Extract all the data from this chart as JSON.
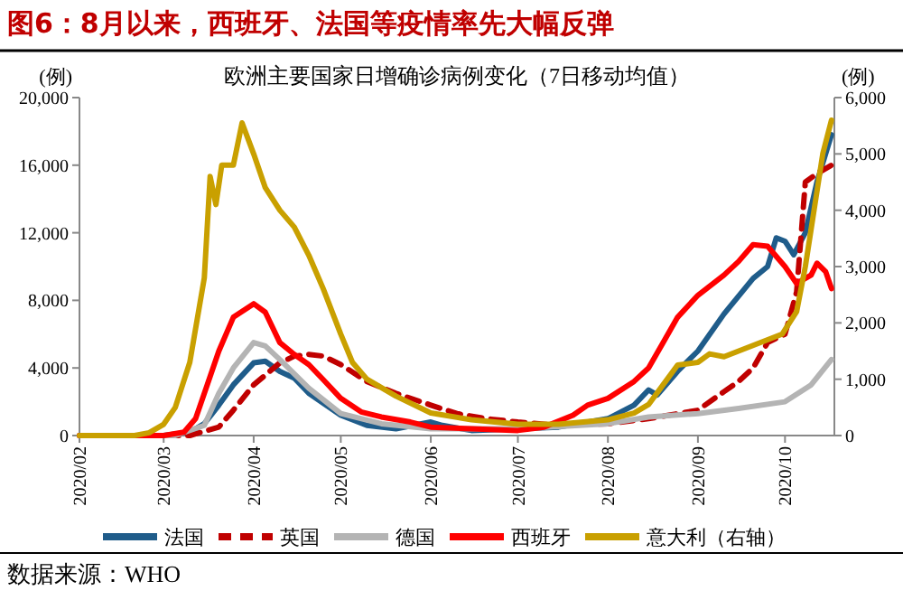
{
  "chart_data": {
    "type": "line",
    "title": "图6：8月以来，西班牙、法国等疫情率先大幅反弹",
    "subtitle": "欧洲主要国家日增确诊病例变化（7日移动均值）",
    "ylabel": "(例)",
    "y2label": "(例)",
    "annotations": [
      "数据来源：WHO"
    ],
    "xlim": [
      "2020-02-01",
      "2020-10-18"
    ],
    "xticks": [
      {
        "value": "2020-02-01",
        "label": "2020/02"
      },
      {
        "value": "2020-03-01",
        "label": "2020/03"
      },
      {
        "value": "2020-04-01",
        "label": "2020/04"
      },
      {
        "value": "2020-05-01",
        "label": "2020/05"
      },
      {
        "value": "2020-06-01",
        "label": "2020/06"
      },
      {
        "value": "2020-07-01",
        "label": "2020/07"
      },
      {
        "value": "2020-08-01",
        "label": "2020/08"
      },
      {
        "value": "2020-09-01",
        "label": "2020/09"
      },
      {
        "value": "2020-10-01",
        "label": "2020/10"
      }
    ],
    "ylim": [
      0,
      20000
    ],
    "yticks": [
      {
        "value": 0,
        "label": "0"
      },
      {
        "value": 4000,
        "label": "4,000"
      },
      {
        "value": 8000,
        "label": "8,000"
      },
      {
        "value": 12000,
        "label": "12,000"
      },
      {
        "value": 16000,
        "label": "16,000"
      },
      {
        "value": 20000,
        "label": "20,000"
      }
    ],
    "y2lim": [
      0,
      6000
    ],
    "y2ticks": [
      {
        "value": 0,
        "label": "0"
      },
      {
        "value": 1000,
        "label": "1,000"
      },
      {
        "value": 2000,
        "label": "2,000"
      },
      {
        "value": 3000,
        "label": "3,000"
      },
      {
        "value": 4000,
        "label": "4,000"
      },
      {
        "value": 5000,
        "label": "5,000"
      },
      {
        "value": 6000,
        "label": "6,000"
      }
    ],
    "grid": false,
    "legend": "bottom",
    "marker": "none",
    "series": [
      {
        "name": "法国",
        "color": "#1f5c8a",
        "line_style": "solid",
        "x": [
          "2020-02-01",
          "2020-03-01",
          "2020-03-10",
          "2020-03-15",
          "2020-03-20",
          "2020-03-25",
          "2020-04-01",
          "2020-04-05",
          "2020-04-10",
          "2020-04-15",
          "2020-04-20",
          "2020-05-01",
          "2020-05-10",
          "2020-05-20",
          "2020-06-01",
          "2020-06-05",
          "2020-06-15",
          "2020-07-01",
          "2020-07-15",
          "2020-08-01",
          "2020-08-10",
          "2020-08-15",
          "2020-08-18",
          "2020-08-25",
          "2020-09-01",
          "2020-09-10",
          "2020-09-20",
          "2020-09-25",
          "2020-09-28",
          "2020-10-01",
          "2020-10-04",
          "2020-10-08",
          "2020-10-12",
          "2020-10-17"
        ],
        "values": [
          0,
          0,
          200,
          700,
          1800,
          3000,
          4300,
          4400,
          3800,
          3400,
          2500,
          1200,
          600,
          400,
          800,
          600,
          300,
          400,
          500,
          1000,
          1800,
          2700,
          2400,
          3800,
          5000,
          7200,
          9300,
          10000,
          11700,
          11500,
          10700,
          12000,
          15000,
          17800
        ]
      },
      {
        "name": "英国",
        "color": "#c00000",
        "line_style": "dashed",
        "x": [
          "2020-02-01",
          "2020-03-10",
          "2020-03-20",
          "2020-03-25",
          "2020-04-01",
          "2020-04-10",
          "2020-04-15",
          "2020-04-20",
          "2020-04-25",
          "2020-05-01",
          "2020-05-10",
          "2020-05-20",
          "2020-06-01",
          "2020-06-10",
          "2020-06-20",
          "2020-07-01",
          "2020-07-15",
          "2020-08-01",
          "2020-08-15",
          "2020-09-01",
          "2020-09-10",
          "2020-09-15",
          "2020-09-20",
          "2020-09-25",
          "2020-10-01",
          "2020-10-05",
          "2020-10-08",
          "2020-10-12",
          "2020-10-17"
        ],
        "values": [
          0,
          0,
          500,
          1500,
          3000,
          4300,
          4700,
          4800,
          4700,
          4200,
          3200,
          2500,
          1800,
          1300,
          1000,
          800,
          600,
          700,
          1000,
          1500,
          2600,
          3200,
          4000,
          5500,
          6000,
          8500,
          15000,
          15500,
          16000
        ]
      },
      {
        "name": "德国",
        "color": "#b4b4b4",
        "line_style": "solid",
        "x": [
          "2020-02-01",
          "2020-03-05",
          "2020-03-15",
          "2020-03-20",
          "2020-03-25",
          "2020-04-01",
          "2020-04-05",
          "2020-04-10",
          "2020-04-20",
          "2020-05-01",
          "2020-05-15",
          "2020-06-01",
          "2020-07-01",
          "2020-08-01",
          "2020-08-15",
          "2020-09-01",
          "2020-09-15",
          "2020-10-01",
          "2020-10-10",
          "2020-10-17"
        ],
        "values": [
          0,
          0,
          600,
          2500,
          4000,
          5500,
          5300,
          4500,
          2800,
          1300,
          700,
          400,
          400,
          700,
          1100,
          1300,
          1600,
          2000,
          3000,
          4500
        ]
      },
      {
        "name": "西班牙",
        "color": "#ff0000",
        "line_style": "solid",
        "x": [
          "2020-02-01",
          "2020-03-01",
          "2020-03-08",
          "2020-03-12",
          "2020-03-16",
          "2020-03-20",
          "2020-03-25",
          "2020-04-01",
          "2020-04-05",
          "2020-04-10",
          "2020-04-15",
          "2020-04-20",
          "2020-04-25",
          "2020-05-01",
          "2020-05-08",
          "2020-05-15",
          "2020-05-25",
          "2020-06-01",
          "2020-06-15",
          "2020-07-01",
          "2020-07-10",
          "2020-07-20",
          "2020-07-25",
          "2020-08-01",
          "2020-08-10",
          "2020-08-15",
          "2020-08-20",
          "2020-08-25",
          "2020-09-01",
          "2020-09-10",
          "2020-09-15",
          "2020-09-20",
          "2020-09-25",
          "2020-10-01",
          "2020-10-05",
          "2020-10-10",
          "2020-10-12",
          "2020-10-15",
          "2020-10-17"
        ],
        "values": [
          0,
          0,
          200,
          1000,
          3000,
          5000,
          7000,
          7800,
          7300,
          5500,
          4800,
          4200,
          3300,
          2200,
          1400,
          1100,
          800,
          500,
          400,
          300,
          500,
          1200,
          1800,
          2200,
          3200,
          4000,
          5500,
          7000,
          8300,
          9500,
          10300,
          11300,
          11200,
          10000,
          9000,
          9500,
          10200,
          9700,
          8700
        ]
      },
      {
        "name": "意大利（右轴）",
        "color": "#c9a000",
        "line_style": "solid",
        "axis": "y2",
        "x": [
          "2020-02-01",
          "2020-02-20",
          "2020-02-25",
          "2020-03-01",
          "2020-03-05",
          "2020-03-10",
          "2020-03-15",
          "2020-03-17",
          "2020-03-19",
          "2020-03-21",
          "2020-03-25",
          "2020-03-28",
          "2020-04-01",
          "2020-04-05",
          "2020-04-10",
          "2020-04-15",
          "2020-04-20",
          "2020-04-25",
          "2020-05-01",
          "2020-05-05",
          "2020-05-10",
          "2020-05-20",
          "2020-06-01",
          "2020-06-15",
          "2020-07-01",
          "2020-07-15",
          "2020-08-01",
          "2020-08-10",
          "2020-08-15",
          "2020-08-20",
          "2020-08-25",
          "2020-09-01",
          "2020-09-05",
          "2020-09-10",
          "2020-09-15",
          "2020-09-20",
          "2020-09-30",
          "2020-10-05",
          "2020-10-08",
          "2020-10-11",
          "2020-10-14",
          "2020-10-17"
        ],
        "values": [
          0,
          0,
          50,
          200,
          500,
          1300,
          2800,
          4600,
          4100,
          4800,
          4800,
          5550,
          5000,
          4400,
          4000,
          3700,
          3200,
          2600,
          1800,
          1300,
          1000,
          700,
          400,
          280,
          200,
          200,
          280,
          400,
          550,
          900,
          1250,
          1300,
          1450,
          1400,
          1500,
          1600,
          1800,
          2200,
          3000,
          4000,
          5000,
          5600
        ]
      }
    ]
  }
}
